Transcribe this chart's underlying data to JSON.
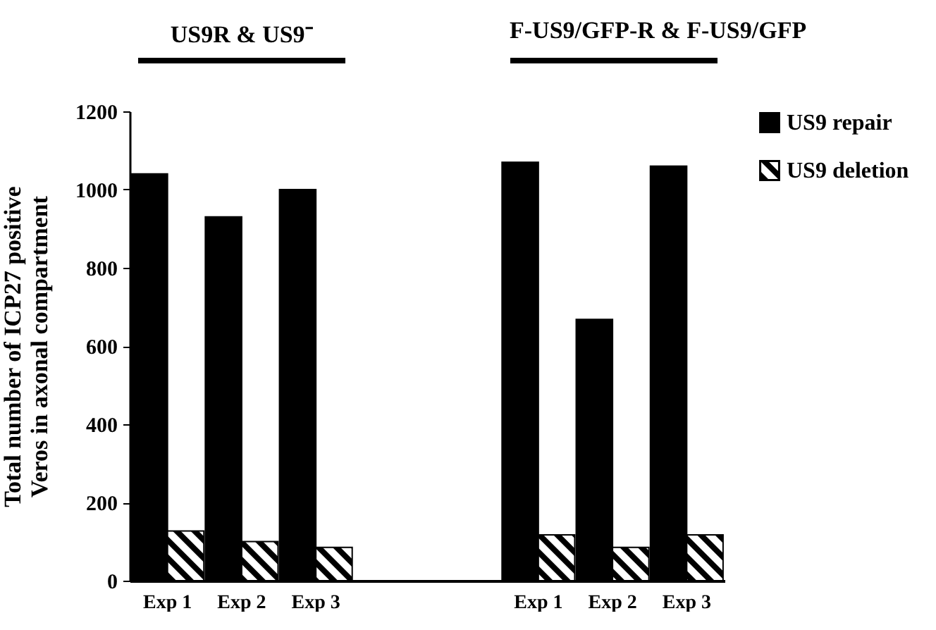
{
  "chart_data": {
    "type": "bar",
    "ylabel": "Total number of ICP27 positive Veros in axonal compartment",
    "annotations": [
      "US9R & US9⁻",
      "F-US9/GFP-R & F-US9/GFP"
    ],
    "categories": [
      "Exp 1",
      "Exp 2",
      "Exp 3",
      null,
      null,
      "Exp 1",
      "Exp 2",
      "Exp 3"
    ],
    "series": [
      {
        "name": "US9 repair",
        "color": "#000000",
        "values": [
          1040,
          930,
          1000,
          null,
          null,
          1070,
          668,
          1060
        ]
      },
      {
        "name": "US9 deletion",
        "color": "#000000",
        "values": [
          127,
          100,
          85,
          null,
          null,
          117,
          85,
          117
        ]
      }
    ],
    "ylim": [
      0,
      1200
    ],
    "yticks": [
      0,
      200,
      400,
      600,
      800,
      1000,
      1200
    ],
    "grid": false,
    "legend": "right"
  }
}
